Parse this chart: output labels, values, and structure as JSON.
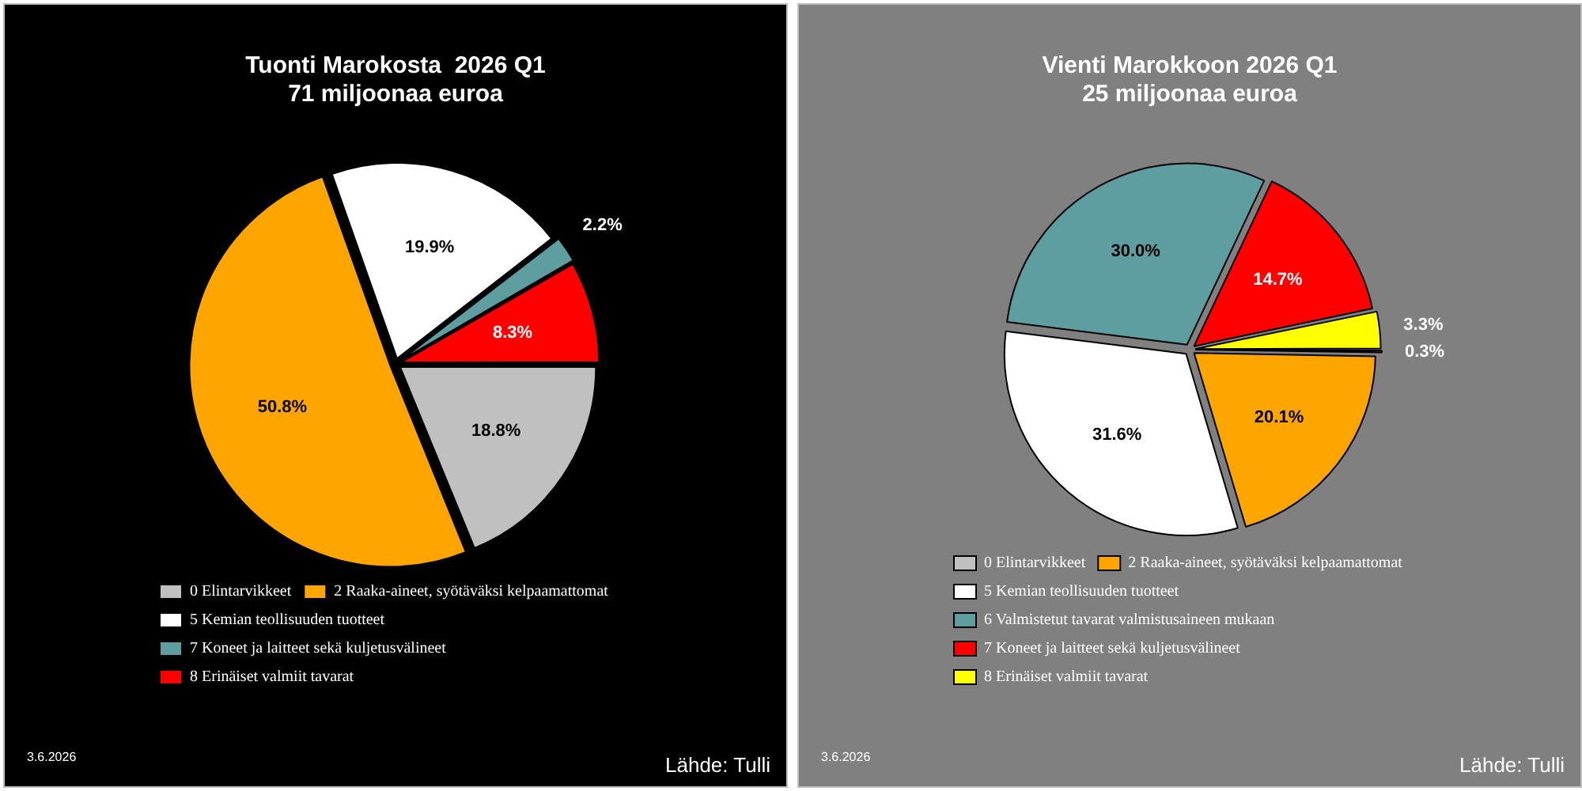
{
  "chart_data": [
    {
      "type": "pie",
      "title": "Tuonti Marokosta  2026 Q1",
      "subtitle": "71 miljoonaa euroa",
      "categories": [
        "0 Elintarvikkeet",
        "2 Raaka-aineet, syötäväksi kelpaamattomat",
        "5 Kemian teollisuuden tuotteet",
        "7 Koneet ja laitteet sekä kuljetusvälineet",
        "8 Erinäiset valmiit tavarat"
      ],
      "values": [
        18.8,
        50.8,
        19.9,
        2.2,
        8.3
      ],
      "colors": [
        "#c0c0c0",
        "#ffa500",
        "#ffffff",
        "#5f9ea0",
        "#ff0000"
      ],
      "value_labels": [
        "18.8%",
        "50.8%",
        "19.9%",
        "2.2%",
        "8.3%"
      ],
      "legend": "bottom",
      "annotations": [
        "3.6.2026",
        "Lähde: Tulli"
      ]
    },
    {
      "type": "pie",
      "title": "Vienti Marokkoon 2026 Q1",
      "subtitle": "25 miljoonaa euroa",
      "categories": [
        "0 Elintarvikkeet",
        "2 Raaka-aineet, syötäväksi kelpaamattomat",
        "5 Kemian teollisuuden tuotteet",
        "6 Valmistetut tavarat valmistusaineen mukaan",
        "7 Koneet ja laitteet sekä kuljetusvälineet",
        "8 Erinäiset valmiit tavarat"
      ],
      "values": [
        0.3,
        20.1,
        31.6,
        30.0,
        14.7,
        3.3
      ],
      "colors": [
        "#c0c0c0",
        "#ffa500",
        "#ffffff",
        "#5f9ea0",
        "#ff0000",
        "#ffff00"
      ],
      "value_labels": [
        "0.3%",
        "20.1%",
        "31.6%",
        "30.0%",
        "14.7%",
        "3.3%"
      ],
      "legend": "bottom",
      "annotations": [
        "3.6.2026",
        "Lähde: Tulli"
      ]
    }
  ]
}
